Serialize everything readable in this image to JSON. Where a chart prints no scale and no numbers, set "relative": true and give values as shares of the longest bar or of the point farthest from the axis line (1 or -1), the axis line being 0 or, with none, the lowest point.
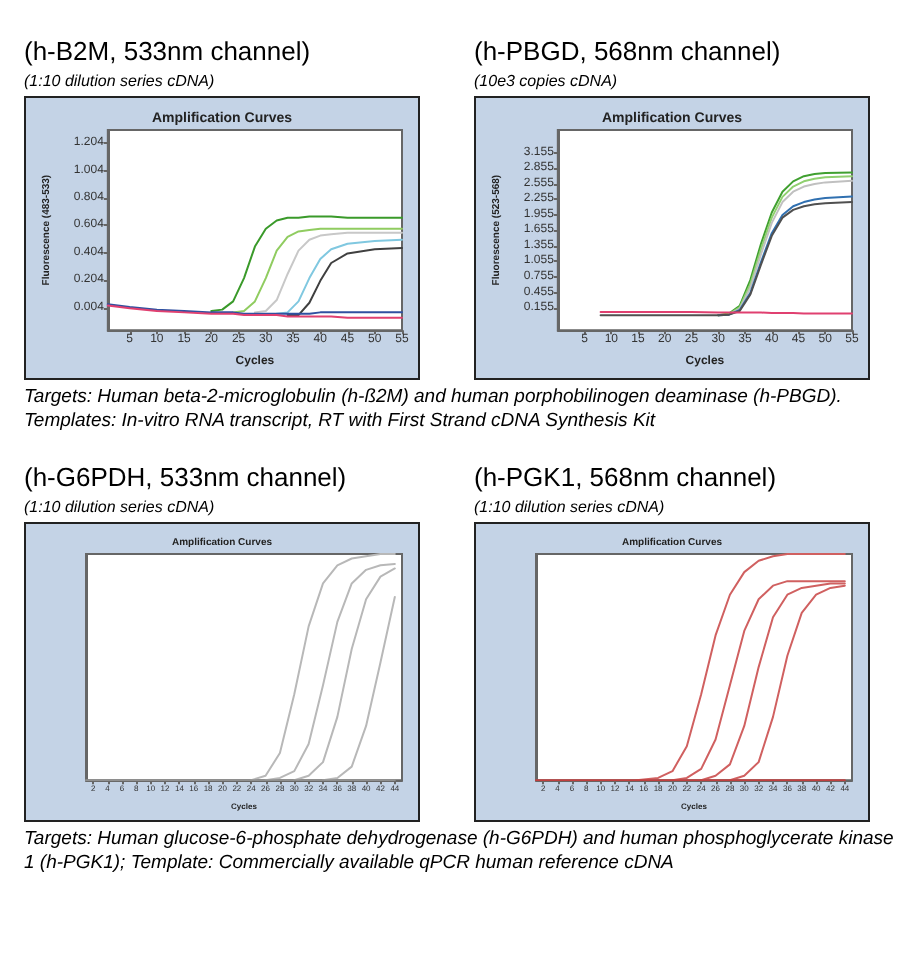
{
  "chart_data": [
    {
      "type": "line",
      "title": "(h-B2M, 533nm channel)",
      "subtitle": "(1:10 dilution series cDNA)",
      "xlabel": "Cycles",
      "ylabel": "Fluorescence (483-533)",
      "annotations": [
        "Amplification Curves",
        "Targets: Human beta-2-microglobulin (h-ß2M) and human porphobilinogen deaminase (h-PBGD). Templates: In-vitro RNA transcript, RT with First Strand cDNA Synthesis Kit"
      ],
      "grid": false,
      "xlim": [
        1,
        55
      ],
      "xticks": [
        5,
        10,
        15,
        20,
        25,
        30,
        35,
        40,
        45,
        50,
        55
      ],
      "ylim": [
        -0.16,
        1.3
      ],
      "yticks": [
        0.004,
        0.204,
        0.404,
        0.604,
        0.804,
        1.004,
        1.204
      ],
      "x": [
        1,
        5,
        10,
        15,
        20,
        22,
        24,
        26,
        28,
        30,
        32,
        34,
        36,
        38,
        40,
        42,
        45,
        50,
        55
      ],
      "series": [
        {
          "color": "#3a9a2a",
          "values": [
            null,
            null,
            null,
            null,
            -0.02,
            -0.01,
            0.05,
            0.22,
            0.45,
            0.58,
            0.64,
            0.66,
            0.66,
            0.67,
            0.67,
            0.67,
            0.66,
            0.66,
            0.66
          ]
        },
        {
          "color": "#90cc60",
          "values": [
            null,
            null,
            null,
            null,
            null,
            null,
            -0.03,
            -0.02,
            0.05,
            0.22,
            0.42,
            0.52,
            0.56,
            0.57,
            0.58,
            0.58,
            0.58,
            0.58,
            0.58
          ]
        },
        {
          "color": "#c8c8c8",
          "values": [
            null,
            null,
            null,
            null,
            null,
            null,
            null,
            null,
            -0.03,
            -0.02,
            0.06,
            0.25,
            0.42,
            0.5,
            0.53,
            0.54,
            0.55,
            0.55,
            0.55
          ]
        },
        {
          "color": "#80c8e0",
          "values": [
            null,
            null,
            null,
            null,
            null,
            null,
            null,
            null,
            null,
            null,
            -0.04,
            -0.03,
            0.05,
            0.22,
            0.36,
            0.43,
            0.47,
            0.49,
            0.5
          ]
        },
        {
          "color": "#404040",
          "values": [
            null,
            null,
            null,
            null,
            null,
            null,
            null,
            null,
            null,
            null,
            null,
            -0.05,
            -0.05,
            0.04,
            0.2,
            0.33,
            0.4,
            0.43,
            0.44
          ]
        },
        {
          "color": "#3050a0",
          "values": [
            0.03,
            0.01,
            -0.01,
            -0.02,
            -0.03,
            -0.03,
            -0.03,
            -0.04,
            -0.04,
            -0.04,
            -0.04,
            -0.04,
            -0.04,
            -0.04,
            -0.03,
            -0.03,
            -0.03,
            -0.03,
            -0.03
          ]
        },
        {
          "color": "#e04070",
          "values": [
            0.02,
            0.0,
            -0.02,
            -0.03,
            -0.04,
            -0.04,
            -0.04,
            -0.05,
            -0.05,
            -0.05,
            -0.05,
            -0.06,
            -0.06,
            -0.06,
            -0.06,
            -0.06,
            -0.07,
            -0.07,
            -0.07
          ]
        }
      ]
    },
    {
      "type": "line",
      "title": "(h-PBGD, 568nm channel)",
      "subtitle": "(10e3 copies cDNA)",
      "xlabel": "Cycles",
      "ylabel": "Fluorescence (523-568)",
      "annotations": [
        "Amplification Curves"
      ],
      "grid": false,
      "xlim": [
        0,
        55
      ],
      "xticks": [
        5,
        10,
        15,
        20,
        25,
        30,
        35,
        40,
        45,
        50,
        55
      ],
      "ylim": [
        -0.27,
        3.59
      ],
      "yticks": [
        0.155,
        0.455,
        0.755,
        1.055,
        1.355,
        1.655,
        1.955,
        2.255,
        2.555,
        2.855,
        3.155
      ],
      "x": [
        8,
        10,
        15,
        20,
        25,
        30,
        32,
        34,
        36,
        38,
        40,
        42,
        44,
        46,
        48,
        50,
        55
      ],
      "series": [
        {
          "color": "#40a030",
          "values": [
            null,
            null,
            null,
            null,
            null,
            0.02,
            0.05,
            0.2,
            0.7,
            1.4,
            2.0,
            2.4,
            2.6,
            2.7,
            2.74,
            2.76,
            2.77
          ]
        },
        {
          "color": "#90d070",
          "values": [
            null,
            null,
            null,
            null,
            null,
            0.02,
            0.04,
            0.17,
            0.62,
            1.3,
            1.9,
            2.3,
            2.5,
            2.6,
            2.65,
            2.68,
            2.7
          ]
        },
        {
          "color": "#c0c0c0",
          "values": [
            null,
            null,
            null,
            null,
            null,
            0.02,
            0.03,
            0.14,
            0.55,
            1.2,
            1.8,
            2.2,
            2.4,
            2.5,
            2.55,
            2.58,
            2.61
          ]
        },
        {
          "color": "#3070b0",
          "values": [
            null,
            null,
            null,
            null,
            null,
            0.02,
            0.03,
            0.12,
            0.45,
            1.05,
            1.6,
            1.95,
            2.12,
            2.2,
            2.25,
            2.28,
            2.31
          ]
        },
        {
          "color": "#505050",
          "values": [
            0.02,
            0.02,
            0.02,
            0.02,
            0.02,
            0.02,
            0.03,
            0.1,
            0.42,
            1.0,
            1.55,
            1.9,
            2.05,
            2.12,
            2.16,
            2.18,
            2.2
          ]
        },
        {
          "color": "#e04070",
          "values": [
            0.08,
            0.08,
            0.08,
            0.08,
            0.08,
            0.07,
            0.07,
            0.07,
            0.07,
            0.07,
            0.06,
            0.06,
            0.06,
            0.05,
            0.05,
            0.05,
            0.05
          ]
        }
      ]
    },
    {
      "type": "line",
      "title": "(h-G6PDH, 533nm channel)",
      "subtitle": "(1:10 dilution series cDNA)",
      "xlabel": "Cycles",
      "annotations": [
        "Amplification Curves",
        "Targets: Human glucose-6-phosphate dehydrogenase (h-G6PDH) and human phosphoglycerate kinase 1 (h-PGK1); Template: Commercially available qPCR human reference cDNA"
      ],
      "grid": false,
      "relative": true,
      "xlim": [
        1,
        45
      ],
      "xticks": [
        2,
        4,
        6,
        8,
        10,
        12,
        14,
        16,
        18,
        20,
        22,
        24,
        26,
        28,
        30,
        32,
        34,
        36,
        38,
        40,
        42,
        44
      ],
      "x": [
        1,
        5,
        10,
        15,
        20,
        24,
        26,
        28,
        30,
        32,
        34,
        36,
        38,
        40,
        42,
        44
      ],
      "series": [
        {
          "color": "#b8b8b8",
          "values": [
            null,
            null,
            null,
            null,
            null,
            0,
            0.02,
            0.12,
            0.38,
            0.68,
            0.87,
            0.95,
            0.98,
            0.99,
            1,
            1
          ]
        },
        {
          "color": "#b8b8b8",
          "values": [
            null,
            null,
            null,
            null,
            null,
            null,
            0,
            0.01,
            0.04,
            0.16,
            0.42,
            0.7,
            0.87,
            0.93,
            0.95,
            0.956
          ]
        },
        {
          "color": "#b8b8b8",
          "values": [
            null,
            null,
            null,
            null,
            null,
            null,
            null,
            null,
            0,
            0.02,
            0.08,
            0.28,
            0.58,
            0.8,
            0.9,
            0.936
          ]
        },
        {
          "color": "#b8b8b8",
          "values": [
            null,
            null,
            null,
            null,
            null,
            null,
            null,
            null,
            null,
            null,
            0,
            0.01,
            0.06,
            0.24,
            0.52,
            0.81
          ]
        },
        {
          "color": "#909090",
          "values": [
            0,
            0,
            0,
            0,
            0,
            0,
            0,
            0,
            0,
            0,
            0,
            0,
            0,
            0,
            0,
            0
          ]
        }
      ]
    },
    {
      "type": "line",
      "title": "(h-PGK1, 568nm channel)",
      "subtitle": "(1:10 dilution series cDNA)",
      "xlabel": "Cycles",
      "annotations": [
        "Amplification Curves"
      ],
      "grid": false,
      "relative": true,
      "xlim": [
        1,
        45
      ],
      "xticks": [
        2,
        4,
        6,
        8,
        10,
        12,
        14,
        16,
        18,
        20,
        22,
        24,
        26,
        28,
        30,
        32,
        34,
        36,
        38,
        40,
        42,
        44
      ],
      "x": [
        1,
        5,
        10,
        15,
        18,
        20,
        22,
        24,
        26,
        28,
        30,
        32,
        34,
        36,
        38,
        40,
        42,
        44
      ],
      "series": [
        {
          "color": "#d06060",
          "values": [
            null,
            null,
            null,
            0,
            0.01,
            0.04,
            0.15,
            0.38,
            0.64,
            0.82,
            0.92,
            0.97,
            0.99,
            1,
            1,
            1,
            1,
            1
          ]
        },
        {
          "color": "#d06060",
          "values": [
            null,
            null,
            null,
            null,
            null,
            0,
            0.01,
            0.05,
            0.18,
            0.42,
            0.66,
            0.8,
            0.86,
            0.88,
            0.88,
            0.88,
            0.88,
            0.88
          ]
        },
        {
          "color": "#d06060",
          "values": [
            null,
            null,
            null,
            null,
            null,
            null,
            null,
            0,
            0.02,
            0.07,
            0.24,
            0.5,
            0.72,
            0.82,
            0.85,
            0.86,
            0.87,
            0.87
          ]
        },
        {
          "color": "#d06060",
          "values": [
            null,
            null,
            null,
            null,
            null,
            null,
            null,
            null,
            null,
            0,
            0.02,
            0.08,
            0.28,
            0.55,
            0.74,
            0.82,
            0.85,
            0.86
          ]
        },
        {
          "color": "#c04040",
          "values": [
            0,
            0,
            0,
            0,
            0,
            0,
            0,
            0,
            0,
            0,
            0,
            0,
            0,
            0,
            0,
            0,
            0,
            0
          ]
        }
      ]
    }
  ]
}
